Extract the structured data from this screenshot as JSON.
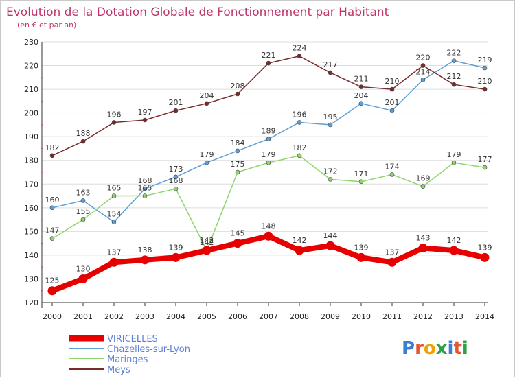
{
  "header": {
    "title": "Evolution de la Dotation Globale de Fonctionnement par Habitant",
    "subtitle": "(en € et par an)"
  },
  "logo": {
    "text": "Proxiti",
    "letter_colors": [
      "#3a7fd4",
      "#e4572e",
      "#f0a202",
      "#2e9f4a",
      "#3a7fd4",
      "#e4572e",
      "#2e9f4a"
    ]
  },
  "colors": {
    "title": "#c0356b",
    "grid": "#dddddd",
    "axis_text": "#222222",
    "legend_text": "#5b7fd6"
  },
  "chart_data": {
    "type": "line",
    "title": "Evolution de la Dotation Globale de Fonctionnement par Habitant",
    "subtitle": "(en € et par an)",
    "xlabel": "",
    "ylabel": "",
    "x": [
      "2000",
      "2001",
      "2002",
      "2003",
      "2004",
      "2005",
      "2006",
      "2007",
      "2008",
      "2009",
      "2010",
      "2011",
      "2012",
      "2013",
      "2014"
    ],
    "yticks": [
      120,
      130,
      140,
      150,
      160,
      170,
      180,
      190,
      200,
      210,
      220,
      230
    ],
    "ylim": [
      120,
      230
    ],
    "grid": "horizontal",
    "legend_position": "bottom-left",
    "series": [
      {
        "name": "VIRICELLES",
        "color": "#e60000",
        "values": [
          125,
          130,
          137,
          138,
          139,
          142,
          145,
          148,
          142,
          144,
          139,
          137,
          143,
          142,
          139
        ],
        "emphasis": true
      },
      {
        "name": "Chazelles-sur-Lyon",
        "color": "#5e9fd6",
        "values": [
          160,
          163,
          154,
          168,
          173,
          179,
          184,
          189,
          196,
          195,
          204,
          201,
          214,
          222,
          219
        ],
        "emphasis": false
      },
      {
        "name": "Maringes",
        "color": "#8fd46a",
        "values": [
          147,
          155,
          165,
          165,
          168,
          142,
          175,
          179,
          182,
          172,
          171,
          174,
          169,
          179,
          177
        ],
        "emphasis": false
      },
      {
        "name": "Meys",
        "color": "#7a2a2a",
        "values": [
          182,
          188,
          196,
          197,
          201,
          204,
          208,
          221,
          224,
          217,
          211,
          210,
          220,
          212,
          210
        ],
        "emphasis": false
      }
    ]
  }
}
